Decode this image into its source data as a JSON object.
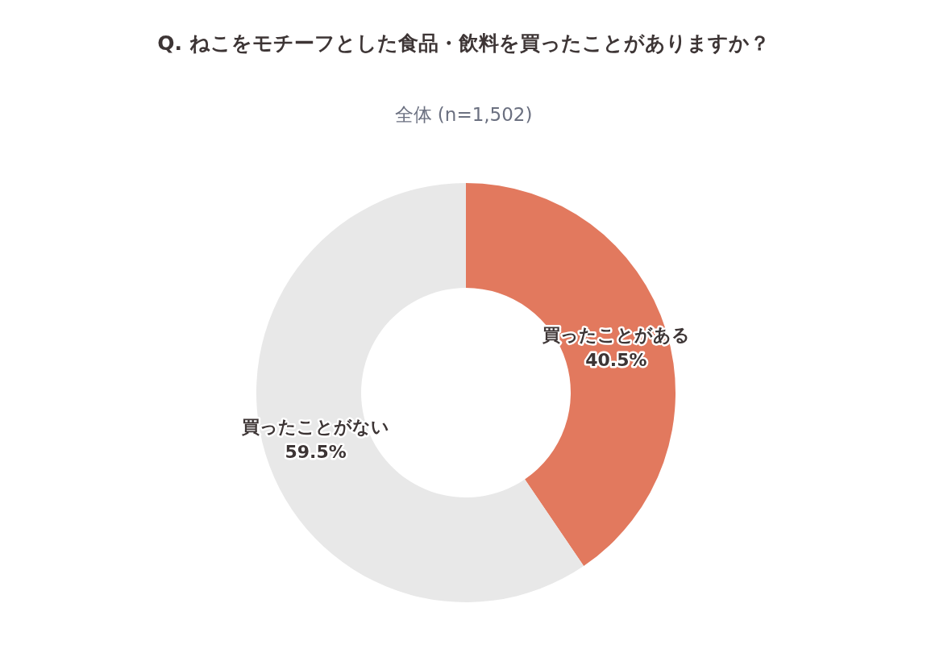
{
  "chart_data": {
    "type": "donut",
    "title": "Q. ねこをモチーフとした食品・飲料を買ったことがありますか？",
    "subtitle": "全体 (n=1,502)",
    "categories": [
      "買ったことがある",
      "買ったことがない"
    ],
    "values": [
      40.5,
      59.5
    ],
    "colors": [
      "#e2795e",
      "#e8e8e8"
    ],
    "value_labels": [
      "40.5%",
      "59.5%"
    ]
  }
}
